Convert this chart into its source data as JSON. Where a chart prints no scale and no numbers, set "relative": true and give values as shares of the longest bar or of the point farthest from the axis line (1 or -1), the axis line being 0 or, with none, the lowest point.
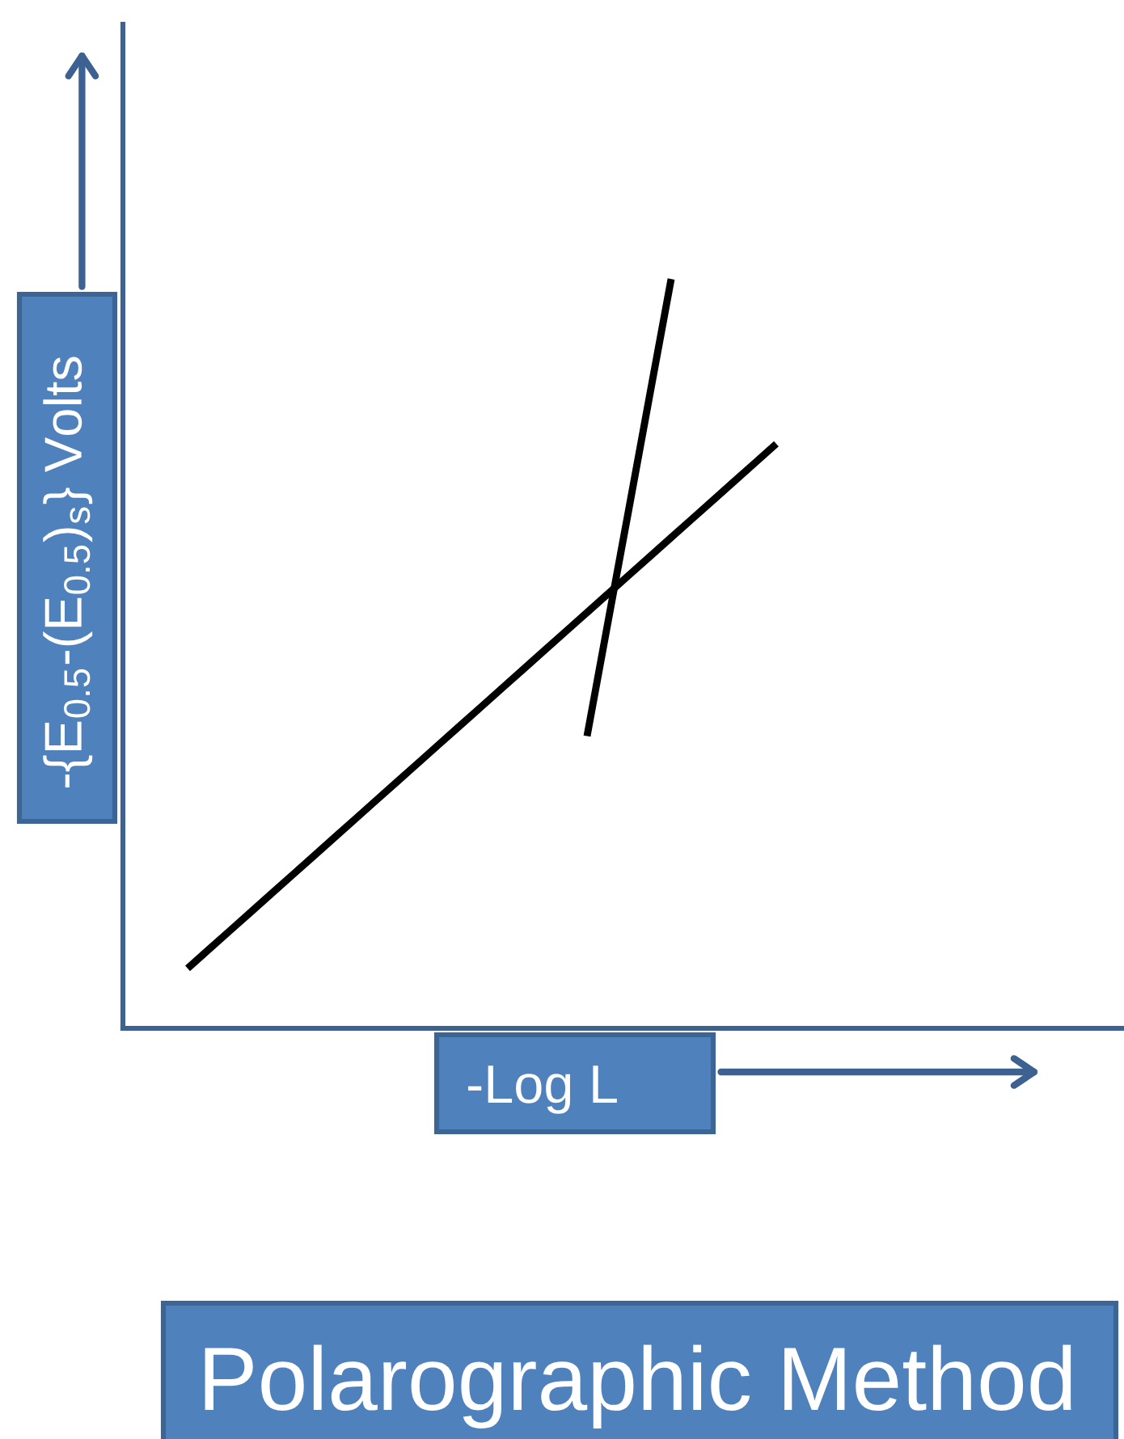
{
  "chart_data": {
    "type": "line",
    "title": "Polarographic Method",
    "xlabel": "-Log L",
    "ylabel": "-{E$_{0.5}$-(E$_{0.5}$)$_{s}$} Volts",
    "relative": true,
    "categories": [
      null,
      null,
      null,
      null,
      null,
      null,
      null,
      null,
      null,
      null,
      null,
      null,
      null,
      null,
      null,
      null,
      null,
      null,
      null,
      null,
      null,
      null,
      null,
      null,
      null,
      null,
      null,
      null,
      null
    ],
    "series": [
      {
        "color": "#000000",
        "values": [
          0.08,
          0.105,
          0.13,
          0.155,
          0.18,
          0.205,
          0.23,
          0.255,
          0.28,
          0.305,
          0.33,
          0.355,
          0.38,
          0.405,
          0.43,
          0.455,
          0.48,
          0.505,
          0.53,
          0.555,
          0.58,
          0.605,
          0.63,
          0.655,
          0.68,
          0.705,
          0.73,
          0.755,
          0.78
        ]
      },
      {
        "color": "#000000",
        "values": [
          null,
          null,
          null,
          null,
          null,
          null,
          null,
          null,
          null,
          null,
          null,
          null,
          null,
          null,
          null,
          null,
          null,
          null,
          null,
          0.39,
          0.543,
          0.695,
          0.848,
          1.0,
          null,
          null,
          null,
          null,
          null
        ]
      }
    ]
  }
}
